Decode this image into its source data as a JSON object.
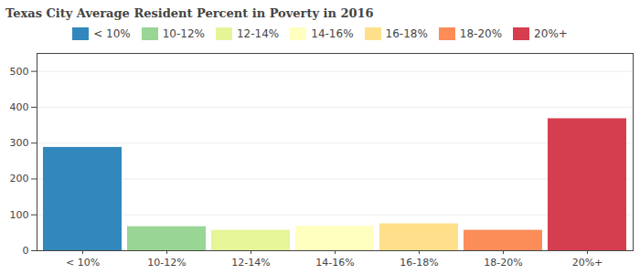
{
  "chart_data": {
    "type": "bar",
    "title": "Texas City Average Resident Percent in Poverty in 2016",
    "categories": [
      "< 10%",
      "10-12%",
      "12-14%",
      "14-16%",
      "16-18%",
      "18-20%",
      "20%+"
    ],
    "values": [
      288,
      67,
      57,
      68,
      75,
      57,
      368
    ],
    "colors": [
      "#3288bd",
      "#99d594",
      "#e6f598",
      "#ffffbf",
      "#fee08b",
      "#fc8d59",
      "#d53e4f"
    ],
    "ylim": [
      0,
      550
    ],
    "yticks": [
      0,
      100,
      200,
      300,
      400,
      500
    ],
    "grid": true,
    "legend": "top"
  }
}
